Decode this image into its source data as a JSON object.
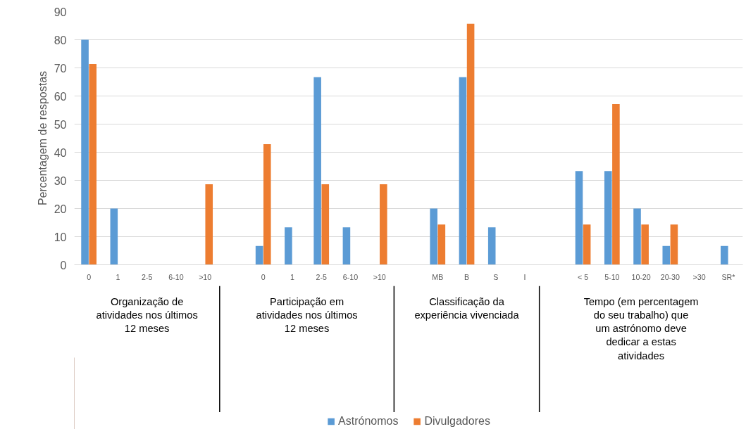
{
  "chart_data": {
    "type": "bar",
    "ylabel": "Percentagem de respostas",
    "categories": [
      "0",
      "1",
      "2-5",
      "6-10",
      ">10",
      null,
      "0",
      "1",
      "2-5",
      "6-10",
      ">10",
      null,
      "MB",
      "B",
      "S",
      "I",
      null,
      "< 5",
      "5-10",
      "10-20",
      "20-30",
      ">30",
      "SR*"
    ],
    "series": [
      {
        "name": "Astrónomos",
        "color": "#5b9bd5",
        "values": [
          80,
          20,
          0,
          0,
          0,
          null,
          6.7,
          13.3,
          66.7,
          13.3,
          0,
          null,
          20,
          66.7,
          13.3,
          0,
          null,
          33.3,
          33.3,
          20,
          6.7,
          0,
          6.7
        ]
      },
      {
        "name": "Divulgadores",
        "color": "#ed7d31",
        "values": [
          71.4,
          0,
          0,
          0,
          28.6,
          null,
          42.9,
          0,
          28.6,
          0,
          28.6,
          null,
          14.3,
          85.7,
          0,
          0,
          null,
          14.3,
          57.1,
          14.3,
          14.3,
          0,
          0
        ]
      }
    ],
    "annotations": [
      "Organização de atividades nos últimos 12 meses",
      "Participação em atividades nos últimos 12 meses",
      "Classificação da experiência vivenciada",
      "Tempo (em percentagem do seu trabalho) que um astrónomo deve dedicar a estas atividades"
    ],
    "ylim": [
      0,
      90
    ],
    "yticks": [
      0,
      10,
      20,
      30,
      40,
      50,
      60,
      70,
      80,
      90
    ],
    "grid": "y",
    "legend": "bottom"
  }
}
